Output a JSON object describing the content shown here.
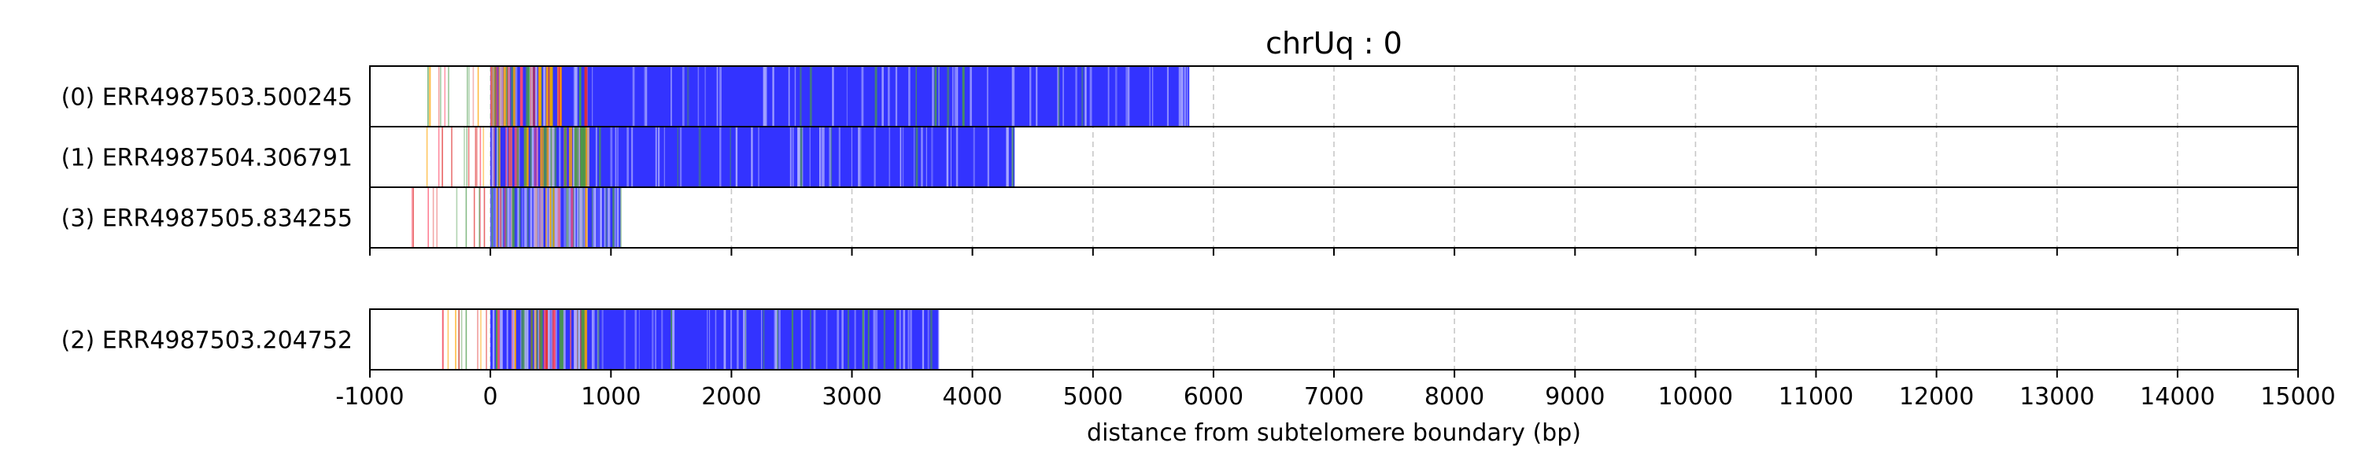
{
  "chart_data": {
    "type": "bar",
    "orientation": "horizontal",
    "title": "chrUq : 0",
    "xlabel": "distance from subtelomere boundary (bp)",
    "ylabel": "",
    "xlim": [
      -1000,
      15000
    ],
    "x_ticks": [
      -1000,
      0,
      1000,
      2000,
      3000,
      4000,
      5000,
      6000,
      7000,
      8000,
      9000,
      10000,
      11000,
      12000,
      13000,
      14000,
      15000
    ],
    "x_tick_labels": [
      "-1000",
      "0",
      "1000",
      "2000",
      "3000",
      "4000",
      "5000",
      "6000",
      "7000",
      "8000",
      "9000",
      "10000",
      "11000",
      "12000",
      "13000",
      "14000",
      "15000"
    ],
    "grid": "vertical dashed",
    "colors": {
      "repeat": "#3333ff",
      "pink": "#ff4d6d",
      "green": "#4a9a4a",
      "orange": "#ffa500",
      "red": "#e03030",
      "light_blue": "#b0b0ff",
      "grid": "#c8c8c8"
    },
    "groups": [
      {
        "reads": [
          {
            "label": "(0) ERR4987503.500245",
            "start": -550,
            "end": 5800
          },
          {
            "label": "(1) ERR4987504.306791",
            "start": -600,
            "end": 4350
          },
          {
            "label": "(3) ERR4987505.834255",
            "start": -700,
            "end": 1080
          }
        ]
      },
      {
        "reads": [
          {
            "label": "(2) ERR4987503.204752",
            "start": -550,
            "end": 3720
          }
        ]
      }
    ]
  }
}
